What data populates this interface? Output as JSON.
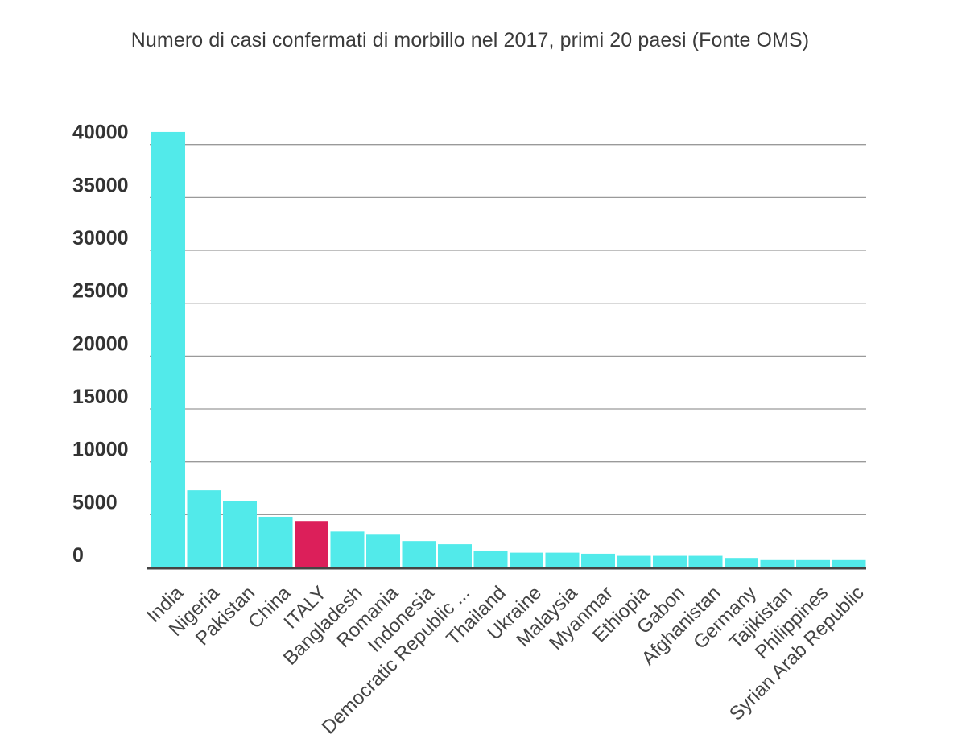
{
  "chart_data": {
    "type": "bar",
    "title": "Numero di casi confermati di morbillo nel 2017, primi 20 paesi (Fonte OMS)",
    "xlabel": "",
    "ylabel": "",
    "categories": [
      "India",
      "Nigeria",
      "Pakistan",
      "China",
      "ITALY",
      "Bangladesh",
      "Romania",
      "Indonesia",
      "Democratic Republic ...",
      "Thailand",
      "Ukraine",
      "Malaysia",
      "Myanmar",
      "Ethiopia",
      "Gabon",
      "Afghanistan",
      "Germany",
      "Tajikistan",
      "Philippines",
      "Syrian Arab Republic"
    ],
    "values": [
      41200,
      7300,
      6300,
      4800,
      4400,
      3400,
      3100,
      2500,
      2200,
      1600,
      1400,
      1400,
      1300,
      1100,
      1100,
      1100,
      900,
      700,
      700,
      700
    ],
    "highlight_category": "ITALY",
    "colors": {
      "bar": "#52eaea",
      "highlight": "#dc1f5a",
      "grid": "#9a9a9a",
      "baseline": "#444444"
    },
    "ylim": [
      0,
      41500
    ],
    "yticks": [
      0,
      5000,
      10000,
      15000,
      20000,
      25000,
      30000,
      35000,
      40000
    ],
    "grid": true,
    "legend": "none"
  }
}
